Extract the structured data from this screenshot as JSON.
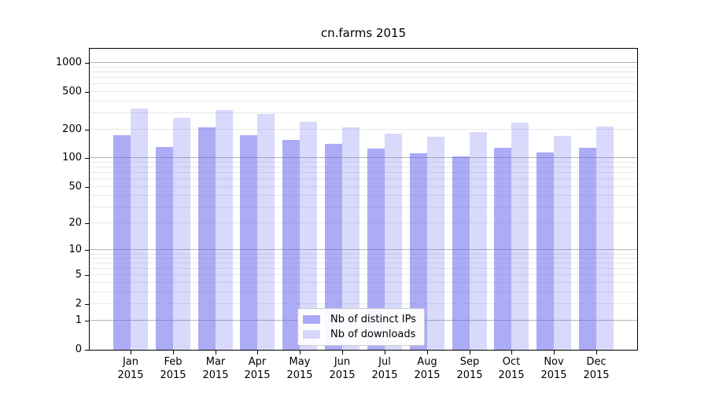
{
  "title": "cn.farms 2015",
  "chart_data": {
    "type": "bar",
    "title": "cn.farms 2015",
    "categories": [
      "Jan",
      "Feb",
      "Mar",
      "Apr",
      "May",
      "Jun",
      "Jul",
      "Aug",
      "Sep",
      "Oct",
      "Nov",
      "Dec"
    ],
    "category_year": "2015",
    "series": [
      {
        "name": "Nb of distinct IPs",
        "color": "#6666ee",
        "alpha": 0.55,
        "values": [
          176,
          132,
          213,
          176,
          157,
          142,
          127,
          114,
          104,
          130,
          115,
          130
        ]
      },
      {
        "name": "Nb of downloads",
        "color": "#6666ee",
        "alpha": 0.25,
        "values": [
          337,
          265,
          325,
          296,
          244,
          213,
          183,
          169,
          190,
          239,
          173,
          217
        ]
      }
    ],
    "xlabel": "",
    "ylabel": "",
    "y_axis": {
      "scale": "log1p",
      "tick_values": [
        0,
        1,
        2,
        5,
        10,
        20,
        50,
        100,
        200,
        500,
        1000
      ],
      "tick_labels": [
        "0",
        "1",
        "2",
        "5",
        "10",
        "20",
        "50",
        "100",
        "200",
        "500",
        "1000"
      ],
      "major_gridlines": [
        1,
        10,
        100,
        1000
      ],
      "minor_gridlines": [
        2,
        3,
        4,
        5,
        6,
        7,
        8,
        9,
        20,
        30,
        40,
        50,
        60,
        70,
        80,
        90,
        200,
        300,
        400,
        500,
        600,
        700,
        800,
        900
      ],
      "ymax": 1418
    },
    "legend": {
      "position": "lower center"
    },
    "grid": true
  },
  "colors": {
    "grid_major": "#b3b3b3",
    "grid_minor": "#e8e8e8",
    "axis": "#000000",
    "background": "#ffffff",
    "legend_border": "#cccccc"
  }
}
